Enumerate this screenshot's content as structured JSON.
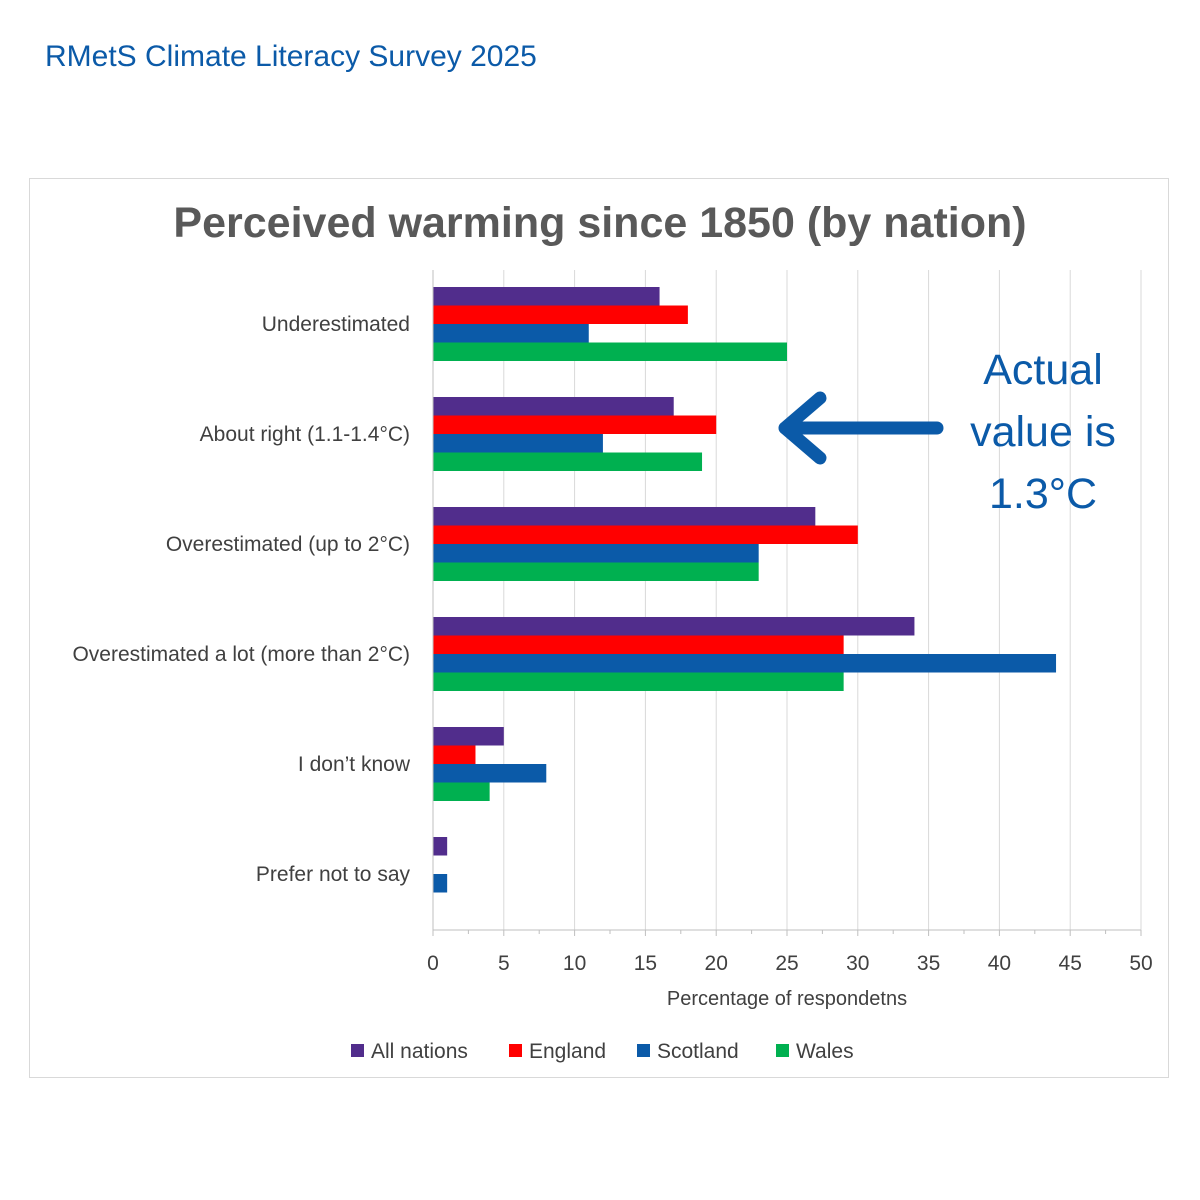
{
  "header": {
    "title": "RMetS Climate Literacy Survey 2025"
  },
  "colors": {
    "all_nations": "#512d8c",
    "england": "#ff0000",
    "scotland": "#0b5aa8",
    "wales": "#00b050",
    "annotation": "#0b5aa8"
  },
  "annotation": {
    "lines": [
      "Actual",
      "value is",
      "1.3°C"
    ]
  },
  "chart_data": {
    "type": "bar",
    "orientation": "horizontal",
    "title": "Perceived warming since 1850 (by nation)",
    "xlabel": "Percentage of respondetns",
    "ylabel": "",
    "xlim": [
      0,
      50
    ],
    "xticks": [
      0,
      5,
      10,
      15,
      20,
      25,
      30,
      35,
      40,
      45,
      50
    ],
    "grid": "vertical",
    "legend_position": "bottom",
    "categories": [
      "Underestimated",
      "About right (1.1-1.4°C)",
      "Overestimated (up to 2°C)",
      "Overestimated a lot (more than 2°C)",
      "I don’t know",
      "Prefer not to say"
    ],
    "series": [
      {
        "name": "All nations",
        "color": "#512d8c",
        "values": [
          16,
          17,
          27,
          34,
          5,
          1
        ]
      },
      {
        "name": "England",
        "color": "#ff0000",
        "values": [
          18,
          20,
          30,
          29,
          3,
          0
        ]
      },
      {
        "name": "Scotland",
        "color": "#0b5aa8",
        "values": [
          11,
          12,
          23,
          44,
          8,
          1
        ]
      },
      {
        "name": "Wales",
        "color": "#00b050",
        "values": [
          25,
          19,
          23,
          29,
          4,
          0
        ]
      }
    ]
  }
}
